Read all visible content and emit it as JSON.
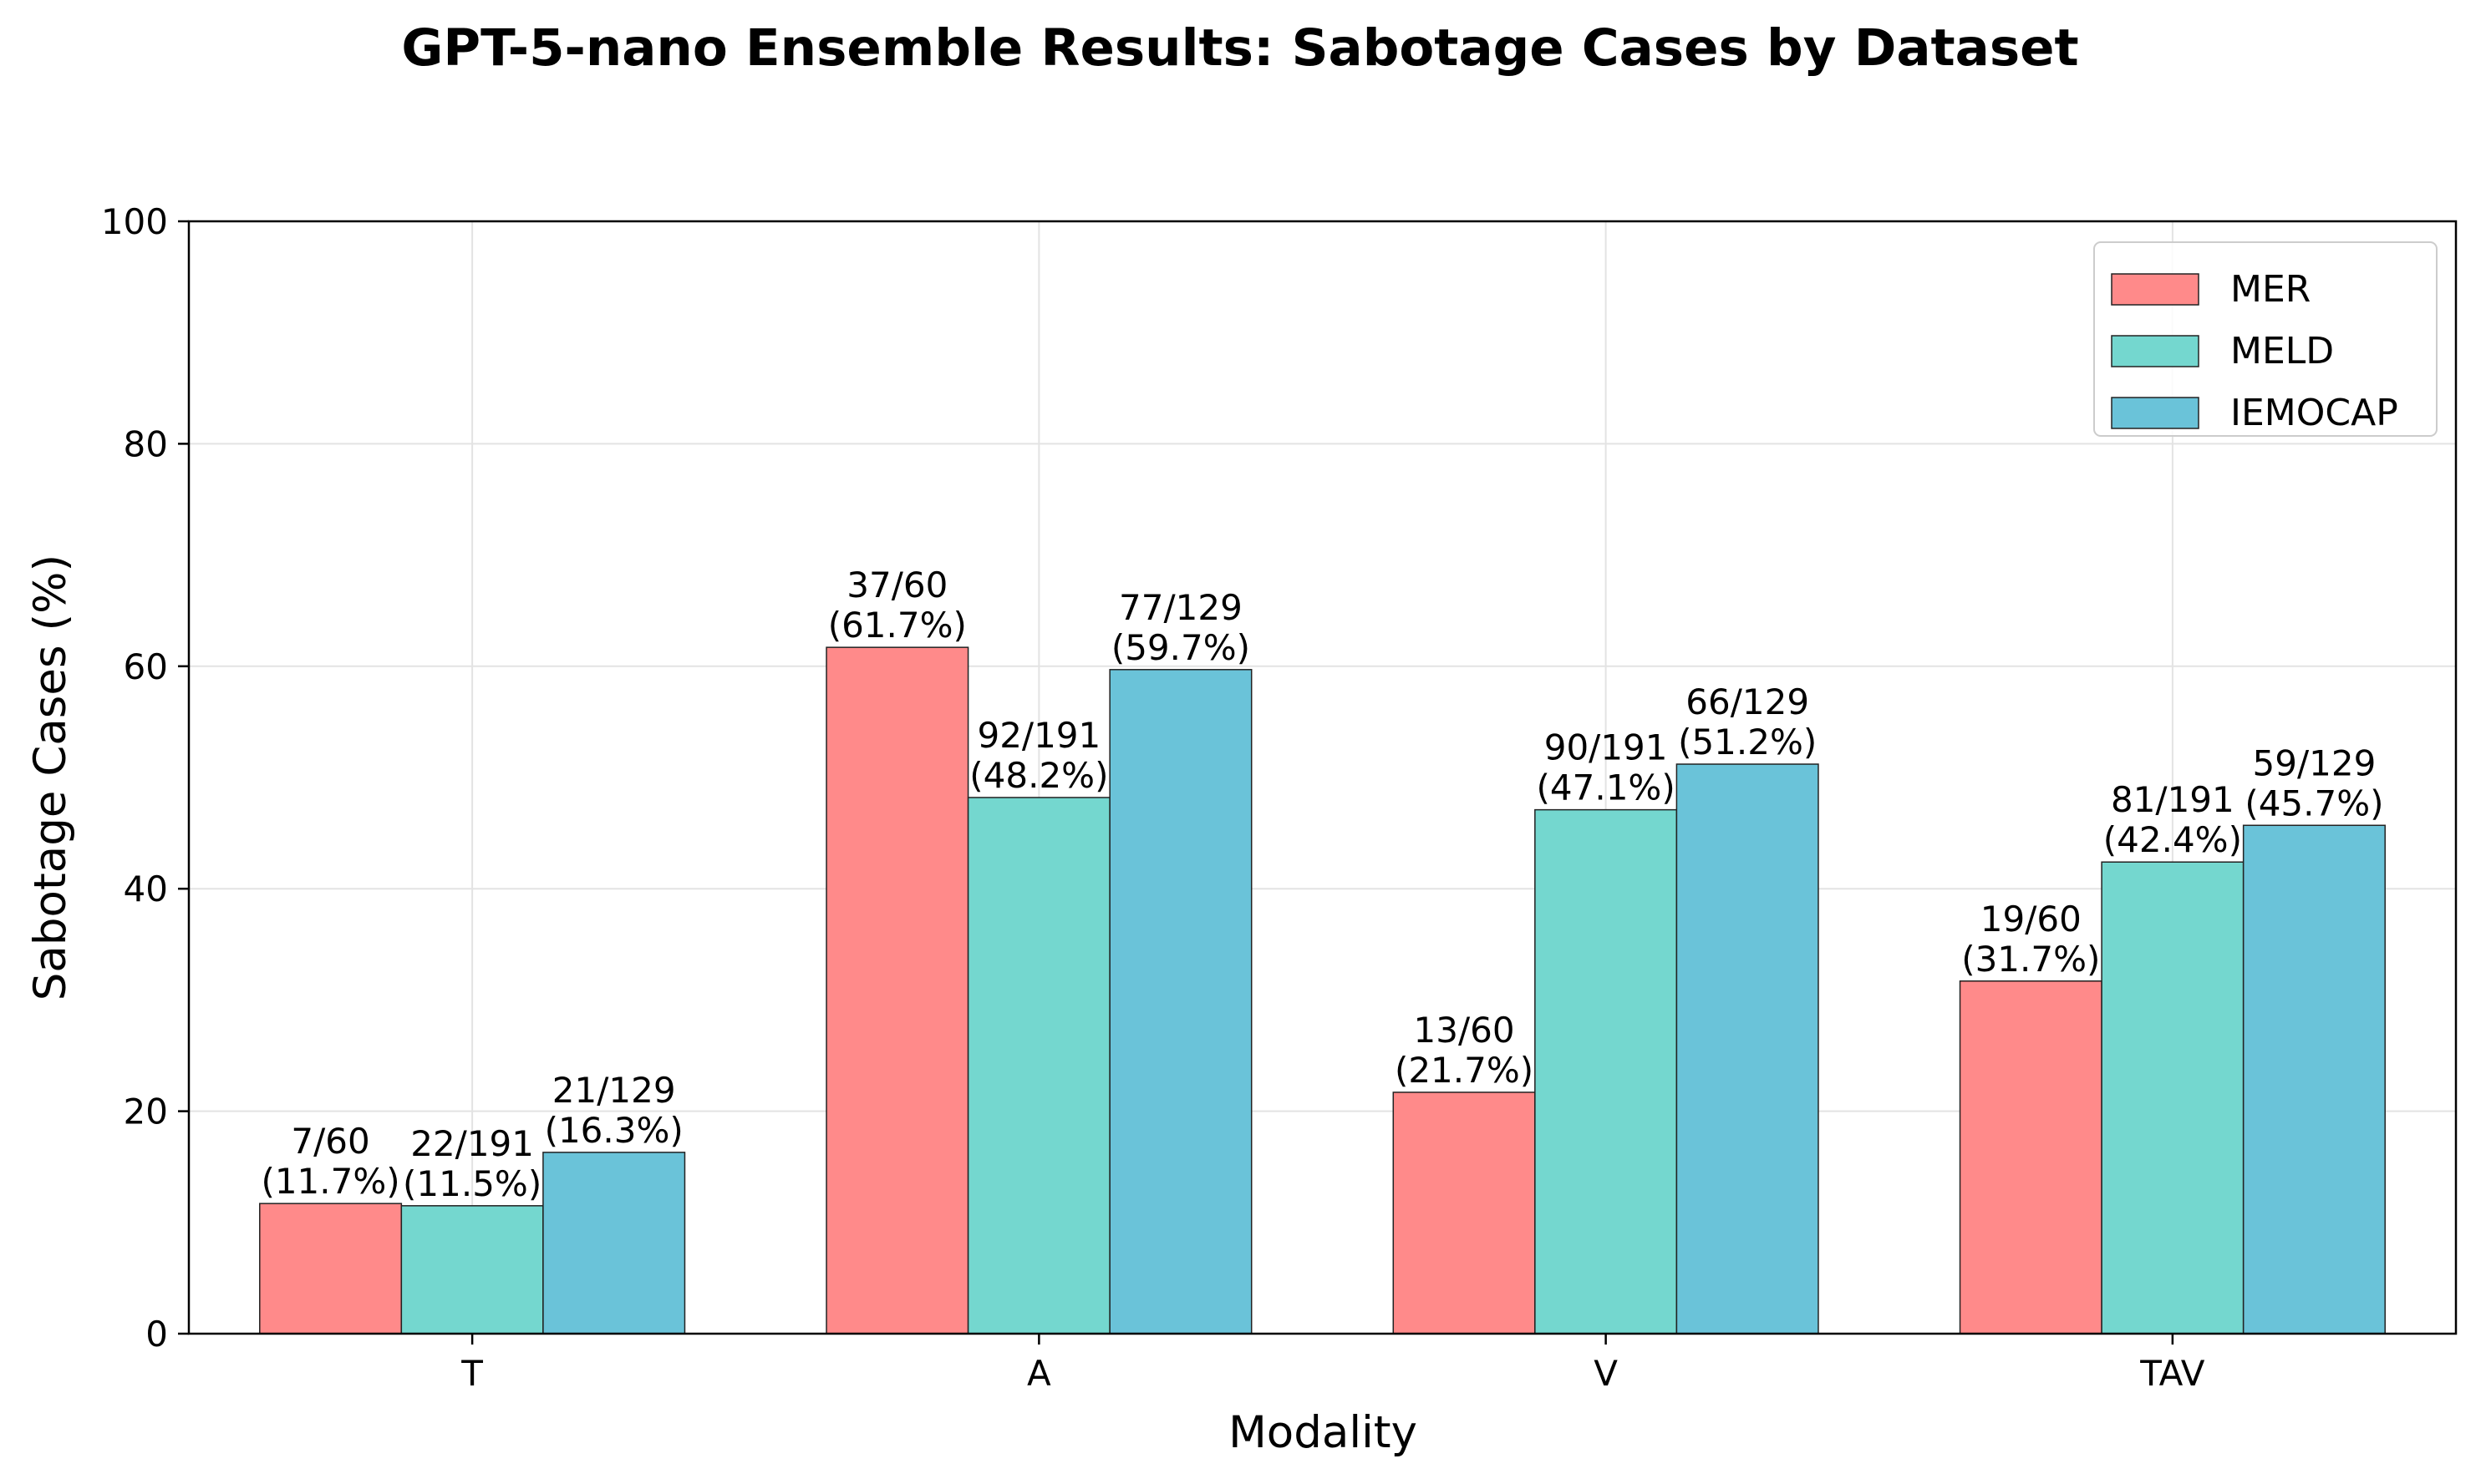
{
  "chart_data": {
    "type": "bar",
    "title": "GPT-5-nano Ensemble Results: Sabotage Cases by Dataset",
    "xlabel": "Modality",
    "ylabel": "Sabotage Cases (%)",
    "categories": [
      "T",
      "A",
      "V",
      "TAV"
    ],
    "ylim": [
      0,
      100
    ],
    "yticks": [
      "0",
      "20",
      "40",
      "60",
      "80",
      "100"
    ],
    "grid": true,
    "legend_position": "top-right",
    "series": [
      {
        "name": "MER",
        "color": "#FF8A8A",
        "values": [
          11.7,
          61.7,
          21.7,
          31.7
        ],
        "labels": [
          [
            "7/60",
            "(11.7%)"
          ],
          [
            "37/60",
            "(61.7%)"
          ],
          [
            "13/60",
            "(21.7%)"
          ],
          [
            "19/60",
            "(31.7%)"
          ]
        ]
      },
      {
        "name": "MELD",
        "color": "#74D7CF",
        "values": [
          11.5,
          48.2,
          47.1,
          42.4
        ],
        "labels": [
          [
            "22/191",
            "(11.5%)"
          ],
          [
            "92/191",
            "(48.2%)"
          ],
          [
            "90/191",
            "(47.1%)"
          ],
          [
            "81/191",
            "(42.4%)"
          ]
        ]
      },
      {
        "name": "IEMOCAP",
        "color": "#6AC3D9",
        "values": [
          16.3,
          59.7,
          51.2,
          45.7
        ],
        "labels": [
          [
            "21/129",
            "(16.3%)"
          ],
          [
            "77/129",
            "(59.7%)"
          ],
          [
            "66/129",
            "(51.2%)"
          ],
          [
            "59/129",
            "(45.7%)"
          ]
        ]
      }
    ]
  }
}
